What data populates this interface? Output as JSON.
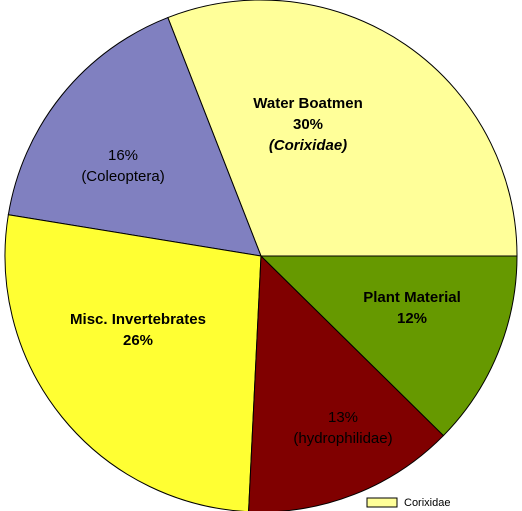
{
  "chart_data": {
    "type": "pie",
    "categories": [
      "Water Boatmen",
      null,
      "Misc. Invertebrates",
      null,
      "Plant Material"
    ],
    "sublabels": [
      "(Corixidae)",
      "(Coleoptera)",
      null,
      "(hydrophilidae)",
      null
    ],
    "values": [
      30,
      16,
      26,
      13,
      12
    ],
    "value_labels": [
      "30%",
      "16%",
      "26%",
      "13%",
      "12%"
    ],
    "colors": [
      "#FFFF99",
      "#8080C0",
      "#FFFF33",
      "#800000",
      "#669900"
    ],
    "legend": [
      {
        "name": "Corixidae",
        "color": "#FFFF99"
      }
    ]
  }
}
